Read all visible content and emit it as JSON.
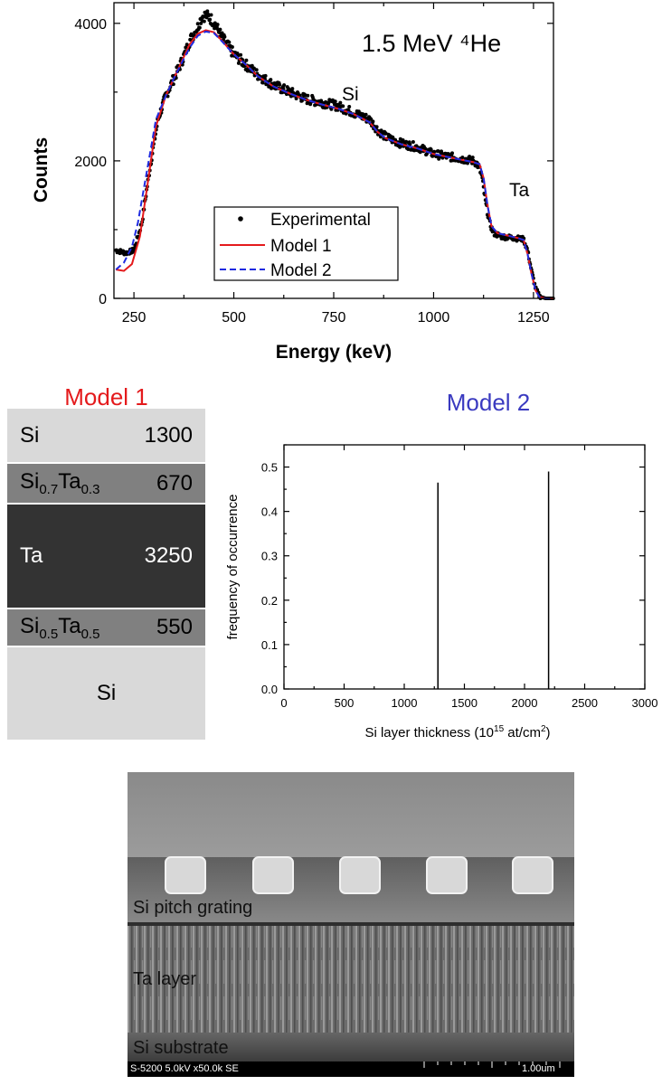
{
  "chart_data": [
    {
      "type": "scatter",
      "title": "1.5 MeV ⁴He",
      "xlabel": "Energy (keV)",
      "ylabel": "Counts",
      "xlim": [
        200,
        1300
      ],
      "ylim": [
        0,
        4300
      ],
      "xticks": [
        "250",
        "500",
        "750",
        "1000",
        "1250"
      ],
      "yticks": [
        "0",
        "2000",
        "4000"
      ],
      "annotations": [
        "Si",
        "Ta"
      ],
      "legend": {
        "position": "bottom-center",
        "entries": [
          "Experimental",
          "Model 1",
          "Model 2"
        ]
      },
      "series": [
        {
          "name": "Experimental",
          "style": "points",
          "color": "#000000",
          "x": [
            205,
            230,
            250,
            270,
            290,
            310,
            330,
            350,
            370,
            390,
            410,
            420,
            430,
            440,
            450,
            470,
            500,
            530,
            560,
            600,
            640,
            680,
            720,
            760,
            800,
            840,
            860,
            880,
            920,
            960,
            1000,
            1050,
            1100,
            1110,
            1120,
            1130,
            1140,
            1150,
            1170,
            1200,
            1225,
            1235,
            1245,
            1255,
            1265,
            1280,
            1300
          ],
          "y": [
            700,
            660,
            700,
            1100,
            1900,
            2600,
            2950,
            3200,
            3450,
            3750,
            3950,
            4100,
            4120,
            4080,
            4020,
            3800,
            3550,
            3400,
            3250,
            3100,
            3000,
            2900,
            2850,
            2800,
            2700,
            2600,
            2450,
            2350,
            2250,
            2200,
            2100,
            2050,
            2000,
            1950,
            1800,
            1400,
            1100,
            950,
            900,
            880,
            860,
            700,
            400,
            150,
            30,
            0,
            0
          ]
        },
        {
          "name": "Model 1",
          "style": "line",
          "color": "#e41a1c",
          "x": [
            205,
            225,
            245,
            265,
            285,
            305,
            330,
            350,
            370,
            390,
            410,
            430,
            450,
            470,
            500,
            530,
            560,
            600,
            640,
            680,
            720,
            760,
            800,
            840,
            860,
            880,
            920,
            960,
            1000,
            1050,
            1100,
            1115,
            1125,
            1135,
            1145,
            1160,
            1180,
            1210,
            1225,
            1235,
            1245,
            1255,
            1265,
            1280,
            1300
          ],
          "y": [
            420,
            400,
            500,
            900,
            1700,
            2500,
            2950,
            3200,
            3450,
            3700,
            3850,
            3900,
            3870,
            3750,
            3550,
            3400,
            3230,
            3080,
            2980,
            2890,
            2820,
            2760,
            2680,
            2560,
            2420,
            2330,
            2240,
            2180,
            2100,
            2040,
            1980,
            1950,
            1750,
            1350,
            1050,
            950,
            920,
            880,
            850,
            650,
            360,
            120,
            20,
            0,
            0
          ]
        },
        {
          "name": "Model 2",
          "style": "dashed",
          "color": "#1f2be0",
          "x": [
            205,
            225,
            245,
            260,
            275,
            290,
            305,
            330,
            350,
            370,
            390,
            410,
            430,
            450,
            470,
            500,
            530,
            560,
            600,
            640,
            680,
            720,
            760,
            800,
            840,
            860,
            880,
            920,
            960,
            1000,
            1050,
            1100,
            1115,
            1125,
            1135,
            1145,
            1160,
            1180,
            1210,
            1225,
            1235,
            1245,
            1255,
            1265,
            1280,
            1300
          ],
          "y": [
            420,
            520,
            750,
            1100,
            1600,
            2100,
            2600,
            2950,
            3200,
            3430,
            3650,
            3820,
            3880,
            3860,
            3740,
            3550,
            3400,
            3230,
            3080,
            2980,
            2890,
            2820,
            2760,
            2680,
            2560,
            2420,
            2330,
            2240,
            2180,
            2100,
            2040,
            1980,
            1950,
            1750,
            1350,
            1050,
            950,
            920,
            880,
            850,
            650,
            360,
            120,
            20,
            0,
            0
          ]
        }
      ]
    },
    {
      "type": "bar",
      "title": "Model 2",
      "xlabel": "Si layer thickness (10",
      "xlabel_sup1": "15",
      "xlabel_mid": " at/cm",
      "xlabel_sup2": "2",
      "xlabel_end": ")",
      "ylabel": "frequency of occurrence",
      "xlim": [
        0,
        3000
      ],
      "ylim": [
        0,
        0.55
      ],
      "xticks": [
        "0",
        "500",
        "1000",
        "1500",
        "2000",
        "2500",
        "3000"
      ],
      "yticks": [
        "0.0",
        "0.1",
        "0.2",
        "0.3",
        "0.4",
        "0.5"
      ],
      "x": [
        1280,
        2200
      ],
      "values": [
        0.465,
        0.49
      ]
    }
  ],
  "model1": {
    "title": "Model 1",
    "layers": [
      {
        "name": "Si",
        "value": "1300",
        "color": "#d9d9d9"
      },
      {
        "name_main1": "Si",
        "name_sub1": "0.7",
        "name_main2": "Ta",
        "name_sub2": "0.3",
        "value": "670",
        "color": "#808080"
      },
      {
        "name": "Ta",
        "value": "3250",
        "color": "#333333",
        "text_color": "#ffffff"
      },
      {
        "name_main1": "Si",
        "name_sub1": "0.5",
        "name_main2": "Ta",
        "name_sub2": "0.5",
        "value": "550",
        "color": "#808080"
      },
      {
        "name": "Si",
        "value": "",
        "color": "#d9d9d9"
      }
    ]
  },
  "sem": {
    "label_top": "Si pitch grating",
    "label_mid": "Ta layer",
    "label_bottom": "Si substrate",
    "info": "S-5200 5.0kV x50.0k SE",
    "scale": "1.00um"
  },
  "colors": {
    "model1_title": "#e41a1c",
    "model2_title": "#3a3ac0"
  }
}
